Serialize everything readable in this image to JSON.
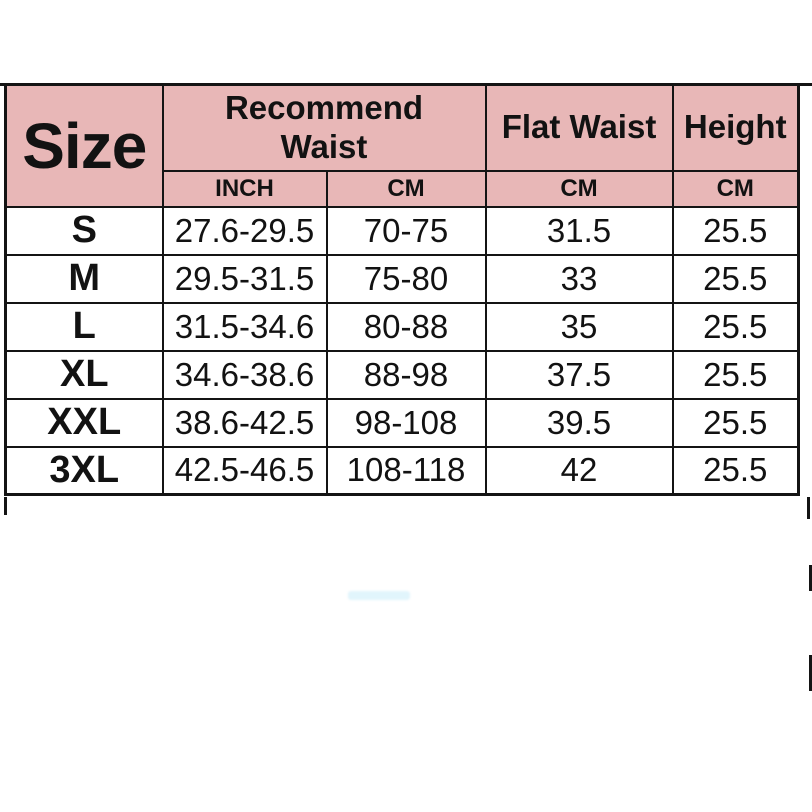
{
  "colors": {
    "header_bg": "#e8b7b7",
    "border": "#141414",
    "row_bg": "#ffffff",
    "text": "#121212"
  },
  "size_chart": {
    "corner_header": "Size",
    "group_header": "Recommend Waist",
    "flat_waist_header": "Flat Waist",
    "height_header": "Height",
    "unit_inch": "INCH",
    "unit_cm_recommend": "CM",
    "unit_cm_flat": "CM",
    "unit_cm_height": "CM",
    "rows": [
      {
        "size": "S",
        "waist_inch": "27.6-29.5",
        "waist_cm": "70-75",
        "flat_waist_cm": "31.5",
        "height_cm": "25.5"
      },
      {
        "size": "M",
        "waist_inch": "29.5-31.5",
        "waist_cm": "75-80",
        "flat_waist_cm": "33",
        "height_cm": "25.5"
      },
      {
        "size": "L",
        "waist_inch": "31.5-34.6",
        "waist_cm": "80-88",
        "flat_waist_cm": "35",
        "height_cm": "25.5"
      },
      {
        "size": "XL",
        "waist_inch": "34.6-38.6",
        "waist_cm": "88-98",
        "flat_waist_cm": "37.5",
        "height_cm": "25.5"
      },
      {
        "size": "XXL",
        "waist_inch": "38.6-42.5",
        "waist_cm": "98-108",
        "flat_waist_cm": "39.5",
        "height_cm": "25.5"
      },
      {
        "size": "3XL",
        "waist_inch": "42.5-46.5",
        "waist_cm": "108-118",
        "flat_waist_cm": "42",
        "height_cm": "25.5"
      }
    ]
  },
  "chart_data": {
    "type": "table",
    "title": "Size",
    "columns": [
      "Size",
      "Recommend Waist INCH",
      "Recommend Waist CM",
      "Flat Waist CM",
      "Height CM"
    ],
    "rows": [
      [
        "S",
        "27.6-29.5",
        "70-75",
        "31.5",
        "25.5"
      ],
      [
        "M",
        "29.5-31.5",
        "75-80",
        "33",
        "25.5"
      ],
      [
        "L",
        "31.5-34.6",
        "80-88",
        "35",
        "25.5"
      ],
      [
        "XL",
        "34.6-38.6",
        "88-98",
        "37.5",
        "25.5"
      ],
      [
        "XXL",
        "38.6-42.5",
        "98-108",
        "39.5",
        "25.5"
      ],
      [
        "3XL",
        "42.5-46.5",
        "108-118",
        "42",
        "25.5"
      ]
    ]
  }
}
